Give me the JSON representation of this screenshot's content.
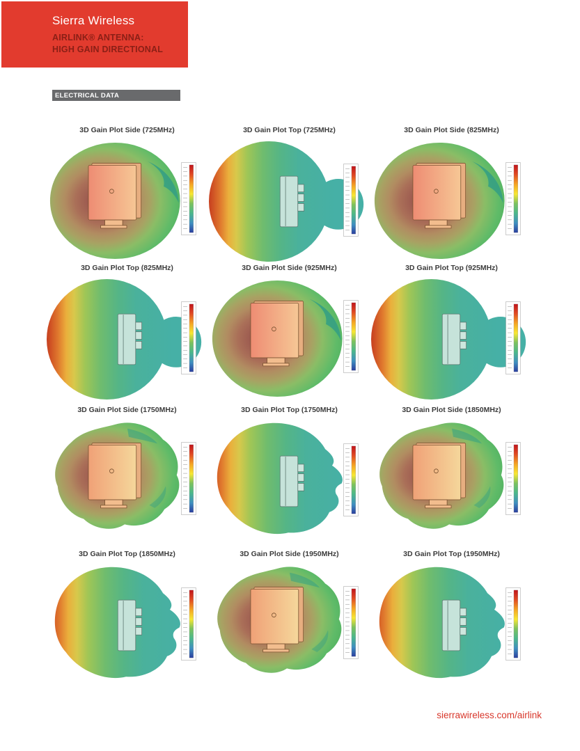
{
  "header": {
    "brand": "Sierra Wireless",
    "subtitle_line1": "AIRLINK® ANTENNA:",
    "subtitle_line2": "HIGH GAIN DIRECTIONAL"
  },
  "section_label": "ELECTRICAL DATA",
  "footer_link": "sierrawireless.com/airlink",
  "colors": {
    "banner_bg": "#e23b2e",
    "subtitle_text": "#8a1f16",
    "section_bg": "#696a6c",
    "footer_text": "#d8372b",
    "title_text": "#3b3b3b",
    "gain_scale": [
      "#c0151c",
      "#e04a23",
      "#f5a623",
      "#f7e733",
      "#7cc25e",
      "#4cb88a",
      "#3f8fc0",
      "#2b3f9e"
    ],
    "blob_core": "#8f4f49",
    "blob_outer_green": "#4aad5d",
    "teal_lobe": "#46b0a6",
    "crescent": "#35a083",
    "antenna_warm_start": "#ee8c73",
    "antenna_warm_end": "#f6c795",
    "antenna_cool": "#c6e3da"
  },
  "plots": [
    {
      "title": "3D Gain Plot Side (725MHz)",
      "view": "Side",
      "frequency_mhz": 725,
      "pattern": "side-low"
    },
    {
      "title": "3D Gain Plot Top (725MHz)",
      "view": "Top",
      "frequency_mhz": 725,
      "pattern": "top-low"
    },
    {
      "title": "3D Gain Plot Side (825MHz)",
      "view": "Side",
      "frequency_mhz": 825,
      "pattern": "side-low"
    },
    {
      "title": "3D Gain Plot Top (825MHz)",
      "view": "Top",
      "frequency_mhz": 825,
      "pattern": "top-low"
    },
    {
      "title": "3D Gain Plot Side  (925MHz)",
      "view": "Side",
      "frequency_mhz": 925,
      "pattern": "side-low"
    },
    {
      "title": "3D Gain Plot Top (925MHz)",
      "view": "Top",
      "frequency_mhz": 925,
      "pattern": "top-low"
    },
    {
      "title": "3D Gain Plot Side (1750MHz)",
      "view": "Side",
      "frequency_mhz": 1750,
      "pattern": "side-high"
    },
    {
      "title": "3D Gain Plot Top (1750MHz)",
      "view": "Top",
      "frequency_mhz": 1750,
      "pattern": "top-high"
    },
    {
      "title": "3D Gain Plot Side (1850MHz)",
      "view": "Side",
      "frequency_mhz": 1850,
      "pattern": "side-high"
    },
    {
      "title": "3D Gain Plot Top (1850MHz)",
      "view": "Top",
      "frequency_mhz": 1850,
      "pattern": "top-high"
    },
    {
      "title": "3D Gain Plot Side (1950MHz)",
      "view": "Side",
      "frequency_mhz": 1950,
      "pattern": "side-high"
    },
    {
      "title": "3D Gain Plot Top (1950MHz)",
      "view": "Top",
      "frequency_mhz": 1950,
      "pattern": "top-high"
    }
  ],
  "chart_data": [
    {
      "type": "heatmap",
      "subtype": "3d-gain-surface",
      "title": "3D Gain Plot Side (725MHz)",
      "legend": "gain colorbar (red=high, blue=low)"
    },
    {
      "type": "heatmap",
      "subtype": "3d-gain-surface",
      "title": "3D Gain Plot Top (725MHz)",
      "legend": "gain colorbar (red=high, blue=low)"
    },
    {
      "type": "heatmap",
      "subtype": "3d-gain-surface",
      "title": "3D Gain Plot Side (825MHz)",
      "legend": "gain colorbar (red=high, blue=low)"
    },
    {
      "type": "heatmap",
      "subtype": "3d-gain-surface",
      "title": "3D Gain Plot Top (825MHz)",
      "legend": "gain colorbar (red=high, blue=low)"
    },
    {
      "type": "heatmap",
      "subtype": "3d-gain-surface",
      "title": "3D Gain Plot Side  (925MHz)",
      "legend": "gain colorbar (red=high, blue=low)"
    },
    {
      "type": "heatmap",
      "subtype": "3d-gain-surface",
      "title": "3D Gain Plot Top (925MHz)",
      "legend": "gain colorbar (red=high, blue=low)"
    },
    {
      "type": "heatmap",
      "subtype": "3d-gain-surface",
      "title": "3D Gain Plot Side (1750MHz)",
      "legend": "gain colorbar (red=high, blue=low)"
    },
    {
      "type": "heatmap",
      "subtype": "3d-gain-surface",
      "title": "3D Gain Plot Top (1750MHz)",
      "legend": "gain colorbar (red=high, blue=low)"
    },
    {
      "type": "heatmap",
      "subtype": "3d-gain-surface",
      "title": "3D Gain Plot Side (1850MHz)",
      "legend": "gain colorbar (red=high, blue=low)"
    },
    {
      "type": "heatmap",
      "subtype": "3d-gain-surface",
      "title": "3D Gain Plot Top (1850MHz)",
      "legend": "gain colorbar (red=high, blue=low)"
    },
    {
      "type": "heatmap",
      "subtype": "3d-gain-surface",
      "title": "3D Gain Plot Side (1950MHz)",
      "legend": "gain colorbar (red=high, blue=low)"
    },
    {
      "type": "heatmap",
      "subtype": "3d-gain-surface",
      "title": "3D Gain Plot Top (1950MHz)",
      "legend": "gain colorbar (red=high, blue=low)"
    }
  ]
}
